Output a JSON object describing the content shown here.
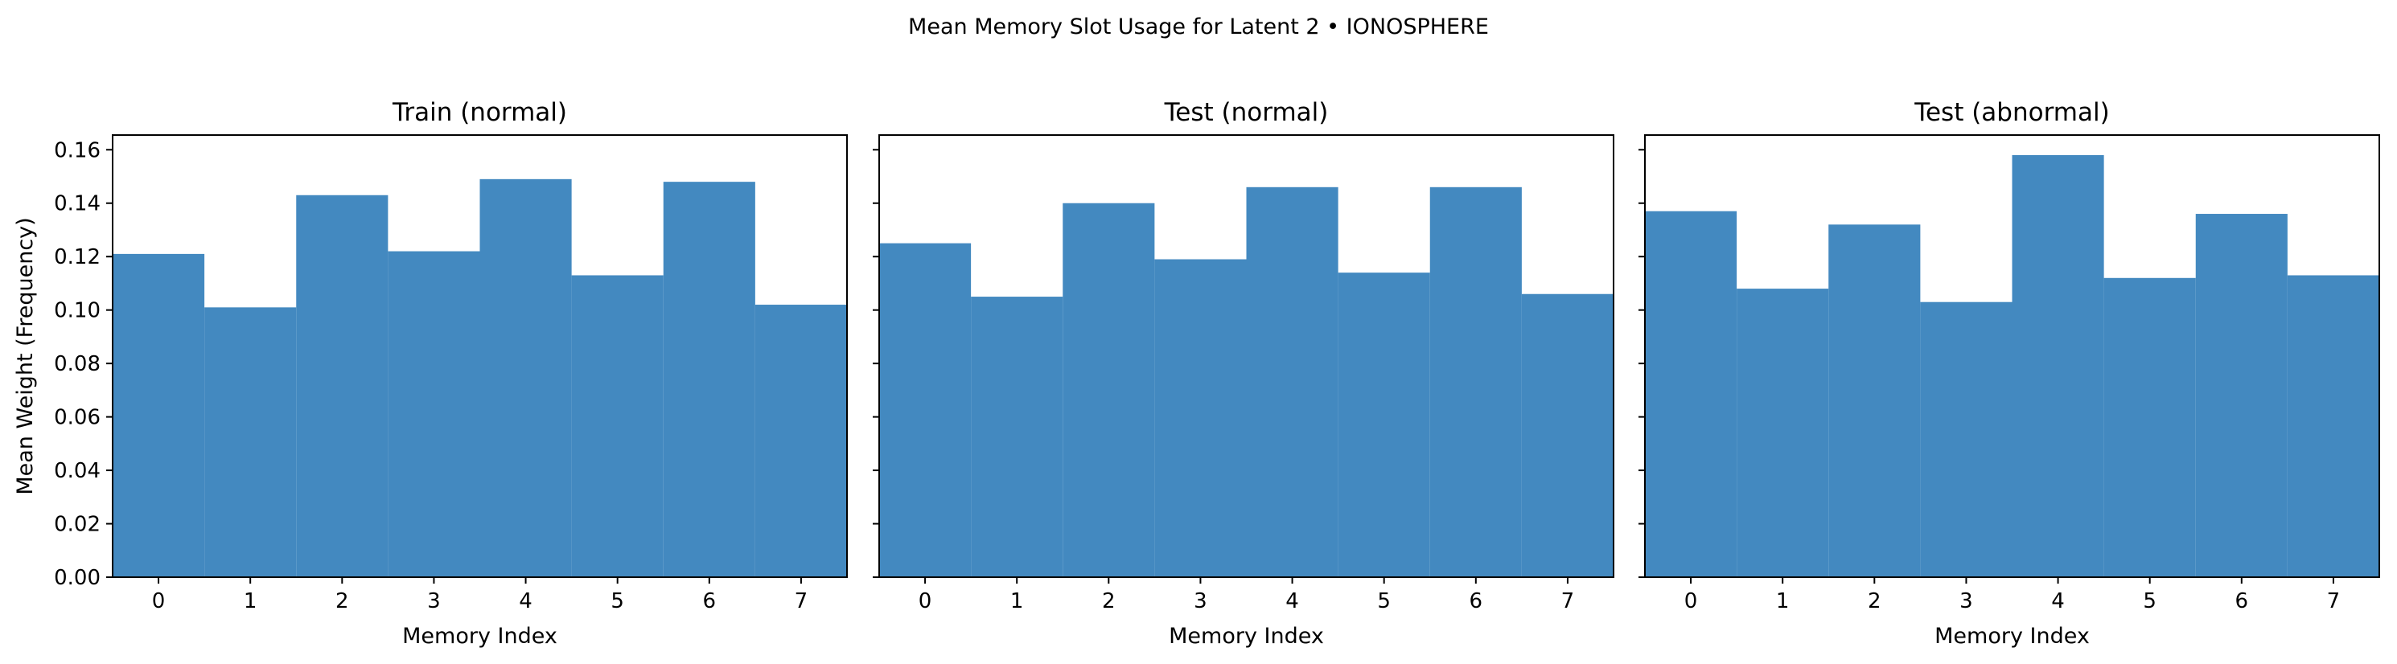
{
  "suptitle": "Mean Memory Slot Usage for Latent 2 • IONOSPHERE",
  "colors": {
    "bar": "#4389c0",
    "axis": "#000000",
    "background": "#ffffff"
  },
  "chart_data": [
    {
      "type": "bar",
      "title": "Train (normal)",
      "xlabel": "Memory Index",
      "ylabel": "Mean Weight (Frequency)",
      "categories": [
        "0",
        "1",
        "2",
        "3",
        "4",
        "5",
        "6",
        "7"
      ],
      "values": [
        0.121,
        0.101,
        0.143,
        0.122,
        0.149,
        0.113,
        0.148,
        0.102
      ],
      "ylim": [
        0,
        0.1655
      ],
      "yticks": [
        "0.00",
        "0.02",
        "0.04",
        "0.06",
        "0.08",
        "0.10",
        "0.12",
        "0.14",
        "0.16"
      ],
      "grid": false
    },
    {
      "type": "bar",
      "title": "Test (normal)",
      "xlabel": "Memory Index",
      "ylabel": "",
      "categories": [
        "0",
        "1",
        "2",
        "3",
        "4",
        "5",
        "6",
        "7"
      ],
      "values": [
        0.125,
        0.105,
        0.14,
        0.119,
        0.146,
        0.114,
        0.146,
        0.106
      ],
      "ylim": [
        0,
        0.1655
      ],
      "yticks": [],
      "grid": false
    },
    {
      "type": "bar",
      "title": "Test (abnormal)",
      "xlabel": "Memory Index",
      "ylabel": "",
      "categories": [
        "0",
        "1",
        "2",
        "3",
        "4",
        "5",
        "6",
        "7"
      ],
      "values": [
        0.137,
        0.108,
        0.132,
        0.103,
        0.158,
        0.112,
        0.136,
        0.113
      ],
      "ylim": [
        0,
        0.1655
      ],
      "yticks": [],
      "grid": false
    }
  ]
}
